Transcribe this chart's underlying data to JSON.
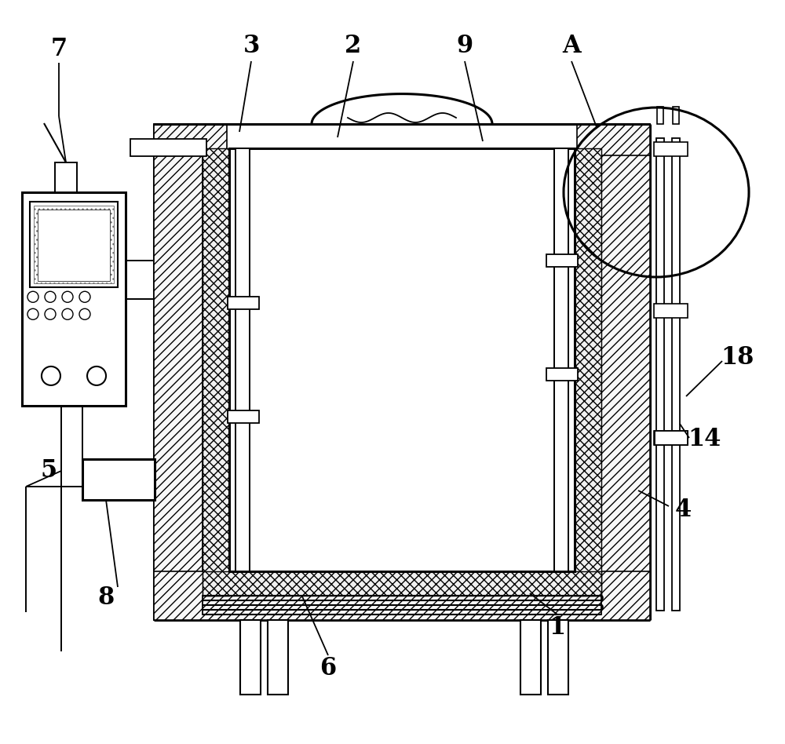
{
  "bg_color": "#ffffff",
  "lc": "#000000",
  "figsize": [
    10.0,
    9.48
  ],
  "dpi": 100,
  "label_fontsize": 22,
  "ann_lw": 1.3,
  "lw": 1.6,
  "lw2": 2.2
}
